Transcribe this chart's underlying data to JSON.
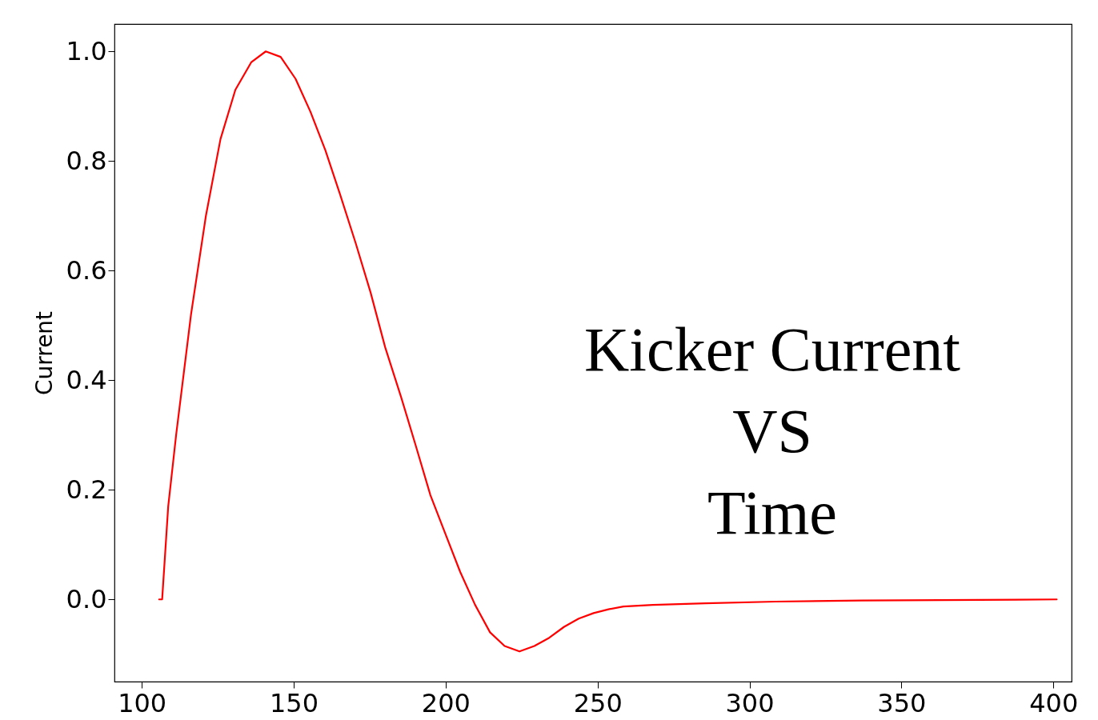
{
  "chart_data": {
    "type": "line",
    "ylabel": "Current",
    "annotations": [
      "Kicker Current\nVS\nTime"
    ],
    "xlim": [
      91,
      406
    ],
    "xticks": [
      100,
      150,
      200,
      250,
      300,
      350,
      400
    ],
    "ylim": [
      -0.15,
      1.05
    ],
    "yticks": [
      {
        "value": 0,
        "label": "0.0"
      },
      0.2,
      0.4,
      0.6,
      0.8,
      {
        "value": 1,
        "label": "1.0"
      }
    ],
    "grid": false,
    "marker": "none",
    "line_style": "solid",
    "series": [
      {
        "color": "#ff0000",
        "x": [
          105.7,
          106.7,
          108.7,
          111.3,
          116.2,
          121.1,
          125.9,
          130.8,
          136.0,
          140.8,
          145.7,
          150.6,
          155.5,
          160.4,
          165.2,
          170.4,
          175.3,
          180.1,
          185.3,
          190.2,
          195.0,
          199.9,
          204.8,
          209.7,
          214.6,
          219.4,
          224.3,
          229.2,
          234.1,
          239.0,
          243.8,
          248.7,
          253.6,
          258.5,
          268.2,
          285.5,
          308.6,
          336.8,
          375.4,
          401.1
        ],
        "values": [
          0.0,
          0.0,
          0.17,
          0.3,
          0.52,
          0.7,
          0.84,
          0.93,
          0.98,
          1.0,
          0.99,
          0.95,
          0.89,
          0.82,
          0.74,
          0.65,
          0.56,
          0.46,
          0.37,
          0.28,
          0.19,
          0.12,
          0.05,
          -0.01,
          -0.06,
          -0.085,
          -0.095,
          -0.085,
          -0.07,
          -0.05,
          -0.035,
          -0.025,
          -0.018,
          -0.013,
          -0.01,
          -0.007,
          -0.004,
          -0.002,
          -0.001,
          0.0
        ]
      }
    ]
  }
}
